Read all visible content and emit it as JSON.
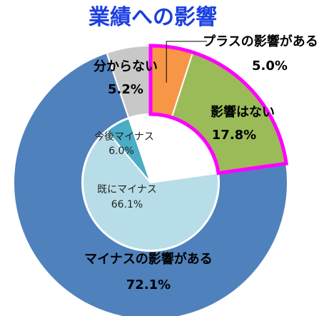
{
  "title": "業績への影響",
  "colors": {
    "title": "#1a3fe0",
    "outer": [
      "#f79646",
      "#9bbb59",
      "#4f81bd",
      "#c8c8c8"
    ],
    "inner": [
      "#b7dde8",
      "#4bacc6"
    ],
    "highlight": "#ff00ff",
    "stroke": "#ffffff"
  },
  "chart_data": [
    {
      "type": "pie",
      "subtype": "donut-outer",
      "categories": [
        "プラスの影響がある",
        "影響はない",
        "マイナスの影響がある",
        "分からない"
      ],
      "values": [
        5.0,
        17.8,
        72.1,
        5.2
      ],
      "labels": [
        "5.0%",
        "17.8%",
        "72.1%",
        "5.2%"
      ],
      "highlighted": [
        "プラスの影響がある",
        "影響はない"
      ]
    },
    {
      "type": "pie",
      "subtype": "donut-inner",
      "categories": [
        "既にマイナス",
        "今後マイナス"
      ],
      "values": [
        66.1,
        6.0
      ],
      "labels": [
        "66.1%",
        "6.0%"
      ]
    }
  ]
}
